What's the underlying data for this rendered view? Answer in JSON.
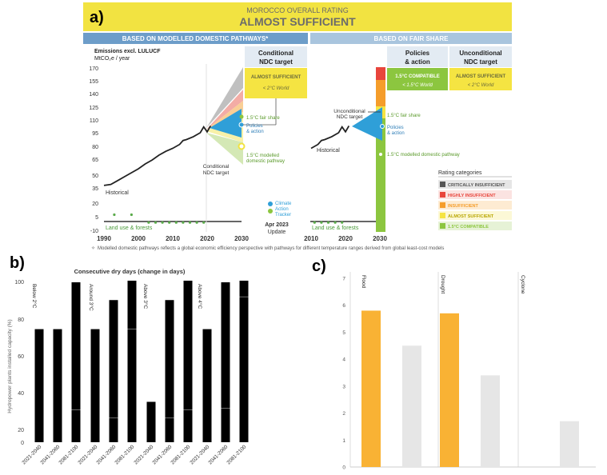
{
  "panel_a": {
    "letter": "a)",
    "overall_rating_label": "MOROCCO OVERALL RATING",
    "overall_rating": "ALMOST SUFFICIENT",
    "left_header": "BASED ON MODELLED DOMESTIC PATHWAYS*",
    "right_header": "BASED ON FAIR SHARE",
    "ylabel": "Emissions excl. LULUCF",
    "yunit": "MtCO₂e / year",
    "yticks": [
      "170",
      "155",
      "140",
      "125",
      "110",
      "95",
      "80",
      "65",
      "50",
      "35",
      "20",
      "5",
      "-10"
    ],
    "xticks_left": [
      "1990",
      "2000",
      "2010",
      "2020",
      "2030"
    ],
    "xticks_right": [
      "2010",
      "2020",
      "2030"
    ],
    "cond_box": {
      "title": "Conditional NDC target",
      "rating": "ALMOST SUFFICIENT",
      "world": "< 2°C World"
    },
    "policies_box": {
      "title": "Policies & action",
      "rating": "1.5°C COMPATIBLE",
      "world": "< 1.5°C World"
    },
    "uncond_box": {
      "title": "Unconditional NDC target",
      "rating": "ALMOST SUFFICIENT",
      "world": "< 2°C World"
    },
    "labels": {
      "historical": "Historical",
      "land_use": "Land use & forests",
      "fair_share": "1.5°C fair share",
      "policies_action": "Policies & action",
      "modelled_pathway": "1.5°C modelled domestic pathway",
      "conditional_ndc": "Conditional NDC target",
      "unconditional_ndc": "Unconditional NDC target",
      "fair_share_right": "1.5°C fair share",
      "policies_right": "Policies & action",
      "modelled_right": "1.5°C modelled domestic pathway"
    },
    "cat_logo": [
      "Climate",
      "Action",
      "Tracker"
    ],
    "update": [
      "Apr 2023",
      "Update"
    ],
    "rating_categories_title": "Rating categories",
    "rating_categories": [
      {
        "label": "CRITICALLY INSUFFICIENT",
        "color": "#555555",
        "bg": "#e6e6e6"
      },
      {
        "label": "HIGHLY INSUFFICIENT",
        "color": "#e8453c",
        "bg": "#fbe3e1"
      },
      {
        "label": "INSUFFICIENT",
        "color": "#f59d2a",
        "bg": "#fdebd2"
      },
      {
        "label": "ALMOST SUFFICIENT",
        "color": "#f5e442",
        "bg": "#fcf8d6"
      },
      {
        "label": "1.5°C COMPATIBLE",
        "color": "#8cc63f",
        "bg": "#e6f2d6"
      }
    ],
    "footnote": "Modelled domestic pathways reflects a global economic efficiency perspective with pathways for different temperature ranges derived from global least-cost models",
    "colors": {
      "banner": "#f2e341",
      "left_header": "#6d9dc9",
      "right_header": "#a9c5de",
      "box_bg": "#e3ebf3",
      "policies_cone": "#2f9fd8",
      "compatible": "#8cc63f",
      "almost": "#f5e442"
    }
  },
  "panel_b": {
    "letter": "b)",
    "title": "Consecutive dry days (change in days)",
    "ylabel": "Hydropower plants installed capacity (%)",
    "yticks": [
      "100",
      "80",
      "60",
      "40",
      "20",
      "0"
    ],
    "group_labels": [
      "Below 2°C",
      "Around 3°C",
      "Above 3°C",
      "Above 4°C"
    ]
  },
  "panel_c": {
    "letter": "c)",
    "yticks": [
      "7",
      "6",
      "5",
      "4",
      "3",
      "2",
      "1",
      "0"
    ],
    "group_labels": [
      "Flood",
      "Drought",
      "Cyclone"
    ]
  },
  "chart_data": [
    {
      "type": "line",
      "title": "MOROCCO OVERALL RATING – ALMOST SUFFICIENT",
      "ylabel": "Emissions excl. LULUCF (MtCO₂e / year)",
      "ylim": [
        -10,
        170
      ],
      "xlim": [
        1990,
        2030
      ],
      "series": [
        {
          "name": "Historical",
          "x": [
            1990,
            1992,
            1994,
            1996,
            1998,
            2000,
            2002,
            2004,
            2006,
            2008,
            2010,
            2012,
            2013,
            2014,
            2016,
            2018,
            2019,
            2020,
            2021
          ],
          "y": [
            37,
            38,
            42,
            46,
            50,
            54,
            59,
            63,
            68,
            72,
            75,
            79,
            83,
            84,
            87,
            91,
            97,
            92,
            98
          ]
        },
        {
          "name": "Land use & forests",
          "x": [
            1993,
            1998,
            2003,
            2005,
            2007,
            2009,
            2011,
            2013,
            2015,
            2017,
            2019
          ],
          "y": [
            7,
            7,
            -1,
            -1,
            -1,
            -1,
            -1,
            -1,
            -1,
            -1,
            -1
          ]
        }
      ]
    },
    {
      "type": "bar",
      "title": "Consecutive dry days (change in days)",
      "ylabel": "Hydropower plants installed capacity (%)",
      "ylim": [
        0,
        100
      ],
      "groups": [
        "Below 2°C",
        "Around 3°C",
        "Above 3°C",
        "Above 4°C"
      ],
      "categories": [
        "2021-2040",
        "2041-2060",
        "2081-2100",
        "2021-2040",
        "2041-2060",
        "2081-2100",
        "2021-2040",
        "2041-2060",
        "2081-2100",
        "2021-2040",
        "2041-2060",
        "2081-2100"
      ],
      "values": [
        70,
        70,
        99,
        70,
        88,
        100,
        25,
        88,
        100,
        70,
        99,
        100
      ]
    },
    {
      "type": "bar",
      "ylim": [
        0,
        7
      ],
      "categories": [
        "Flood",
        "Drought",
        "Cyclone"
      ],
      "series": [
        {
          "color": "#f9b234",
          "values": [
            5.8,
            5.7,
            0
          ]
        },
        {
          "color": "#e6e6e6",
          "values": [
            4.5,
            3.4,
            1.7
          ]
        }
      ]
    }
  ]
}
